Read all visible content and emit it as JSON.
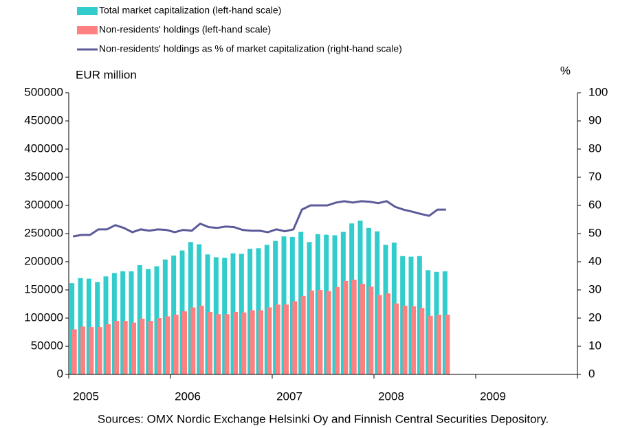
{
  "chart_data": {
    "type": "bar-line",
    "y_label": "EUR million",
    "y2_label": "%",
    "source": "Sources: OMX Nordic Exchange Helsinki Oy and Finnish Central Securities Depository.",
    "xlim": [
      2005,
      2010
    ],
    "xticks": [
      2005,
      2006,
      2007,
      2008,
      2009
    ],
    "ylim": [
      0,
      500000
    ],
    "yticks": [
      0,
      50000,
      100000,
      150000,
      200000,
      250000,
      300000,
      350000,
      400000,
      450000,
      500000
    ],
    "y2lim": [
      0,
      100
    ],
    "y2ticks": [
      0,
      10,
      20,
      30,
      40,
      50,
      60,
      70,
      80,
      90,
      100
    ],
    "series": [
      {
        "name": "Total market capitalization (left-hand scale)",
        "type": "bar",
        "color": "#33cccc",
        "values": [
          162000,
          171000,
          170000,
          164000,
          174000,
          180000,
          183000,
          183000,
          194000,
          187000,
          192000,
          204000,
          211000,
          220000,
          235000,
          231000,
          213000,
          208000,
          207000,
          215000,
          214000,
          223000,
          224000,
          230000,
          237000,
          245000,
          244000,
          253000,
          235000,
          249000,
          248000,
          247000,
          253000,
          268000,
          273000,
          260000,
          254000,
          230000,
          234000,
          210000,
          209000,
          210000,
          185000,
          182000,
          183000
        ]
      },
      {
        "name": "Non-residents' holdings (left-hand scale)",
        "type": "bar",
        "color": "#ff8080",
        "values": [
          80000,
          85000,
          84000,
          84000,
          89000,
          95000,
          95000,
          92000,
          99000,
          95000,
          100000,
          103000,
          106000,
          112000,
          119000,
          122000,
          111000,
          107000,
          107000,
          111000,
          110000,
          114000,
          114000,
          119000,
          124000,
          124000,
          130000,
          139000,
          149000,
          150000,
          148000,
          155000,
          166000,
          168000,
          161000,
          156000,
          141000,
          144000,
          126000,
          122000,
          121000,
          118000,
          104000,
          106000,
          106000
        ]
      },
      {
        "name": "Non-residents' holdings as % of market capitalization (right-hand scale)",
        "type": "line",
        "axis": "y2",
        "color": "#5b5b9a",
        "values": [
          49,
          49.5,
          49.5,
          51.5,
          51.5,
          53,
          52,
          50.5,
          51.5,
          51,
          51.5,
          51.3,
          50.5,
          51.3,
          51,
          53.5,
          52.3,
          52,
          52.5,
          52.3,
          51.3,
          51,
          51,
          50.5,
          51.5,
          50.8,
          51.5,
          58.5,
          60,
          60,
          60,
          61,
          61.5,
          61,
          61.5,
          61.3,
          60.8,
          61.5,
          59.5,
          58.5,
          57.8,
          57,
          56.3,
          58.5,
          58.5
        ]
      }
    ]
  }
}
